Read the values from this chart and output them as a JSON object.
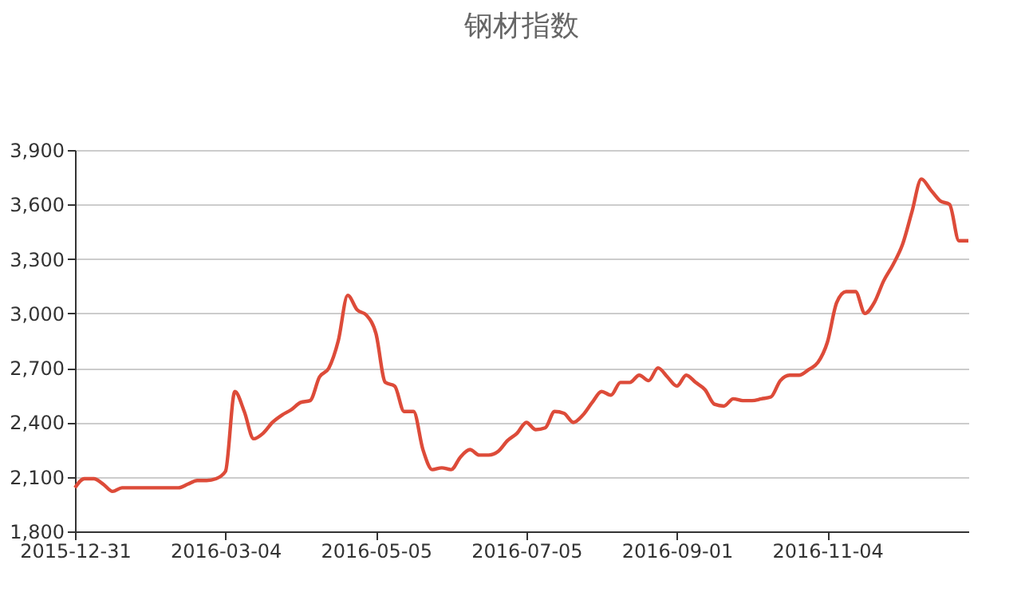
{
  "chart_data": {
    "type": "line",
    "title": "钢材指数",
    "categories": [
      "2015-12-31",
      null,
      null,
      null,
      null,
      null,
      null,
      null,
      null,
      null,
      null,
      null,
      null,
      null,
      null,
      null,
      "2016-03-04",
      null,
      null,
      null,
      null,
      null,
      null,
      null,
      null,
      null,
      null,
      null,
      null,
      null,
      null,
      null,
      "2016-05-05",
      null,
      null,
      null,
      null,
      null,
      null,
      null,
      null,
      null,
      null,
      null,
      null,
      null,
      null,
      null,
      "2016-07-05",
      null,
      null,
      null,
      null,
      null,
      null,
      null,
      null,
      null,
      null,
      null,
      null,
      null,
      null,
      null,
      "2016-09-01",
      null,
      null,
      null,
      null,
      null,
      null,
      null,
      null,
      null,
      null,
      null,
      null,
      null,
      null,
      null,
      "2016-11-04",
      null,
      null,
      null,
      null,
      null,
      null,
      null,
      null,
      null,
      null,
      null,
      null,
      null,
      null,
      null
    ],
    "series": [
      {
        "color": "#dd4b39",
        "values": [
          2040,
          2090,
          2090,
          2060,
          2020,
          2040,
          2040,
          2040,
          2040,
          2040,
          2040,
          2040,
          2060,
          2080,
          2080,
          2090,
          2130,
          2570,
          2460,
          2310,
          2340,
          2400,
          2440,
          2470,
          2510,
          2520,
          2650,
          2700,
          2850,
          3100,
          3020,
          2990,
          2890,
          2620,
          2600,
          2460,
          2460,
          2250,
          2140,
          2150,
          2140,
          2210,
          2250,
          2220,
          2220,
          2240,
          2300,
          2340,
          2400,
          2360,
          2370,
          2460,
          2450,
          2400,
          2440,
          2510,
          2570,
          2550,
          2620,
          2620,
          2660,
          2630,
          2700,
          2650,
          2600,
          2660,
          2620,
          2580,
          2500,
          2490,
          2530,
          2520,
          2520,
          2530,
          2540,
          2630,
          2660,
          2660,
          2690,
          2730,
          2840,
          3060,
          3120,
          3120,
          3000,
          3060,
          3180,
          3270,
          3380,
          3560,
          3740,
          3680,
          3620,
          3600,
          3400,
          3400
        ]
      }
    ],
    "ylim": [
      1800,
      3900
    ],
    "yticks": [
      {
        "value": 1800,
        "label": "1,800"
      },
      {
        "value": 2100,
        "label": "2,100"
      },
      {
        "value": 2400,
        "label": "2,400"
      },
      {
        "value": 2700,
        "label": "2,700"
      },
      {
        "value": 3000,
        "label": "3,000"
      },
      {
        "value": 3300,
        "label": "3,300"
      },
      {
        "value": 3600,
        "label": "3,600"
      },
      {
        "value": 3900,
        "label": "3,900"
      }
    ],
    "grid": "y",
    "line_style": "solid"
  }
}
